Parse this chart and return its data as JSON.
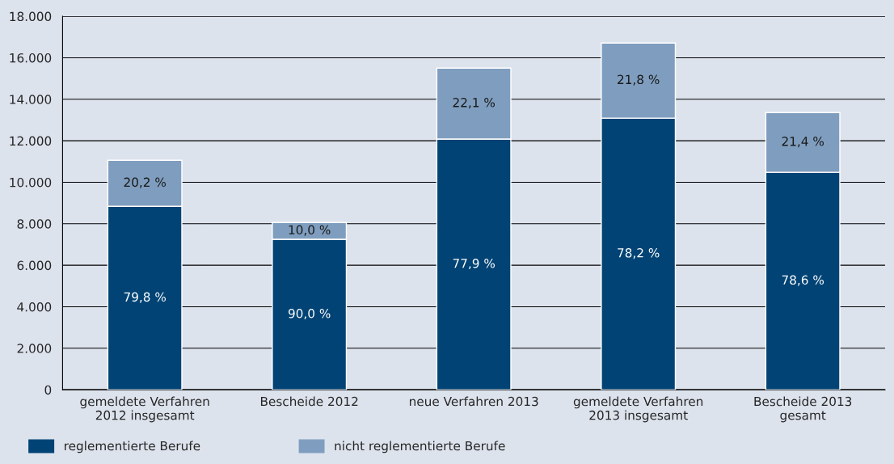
{
  "chart_data": {
    "type": "bar",
    "stacked": true,
    "categories": [
      "gemeldete Verfahren\n2012 insgesamt",
      "Bescheide 2012",
      "neue Verfahren 2013",
      "gemeldete Verfahren\n2013 insgesamt",
      "Bescheide 2013\ngesamt"
    ],
    "series": [
      {
        "name": "reglementierte Berufe",
        "color": "#004374",
        "values": [
          8840,
          7250,
          12080,
          13090,
          10480
        ]
      },
      {
        "name": "nicht reglementierte Berufe",
        "color": "#7f9ebf",
        "values": [
          2220,
          810,
          3420,
          3620,
          2880
        ]
      }
    ],
    "annotations": [
      "79,8 %",
      "90,0 %",
      "77,9 %",
      "78,2 %",
      "78,6 %",
      "20,2 %",
      "10,0 %",
      "22,1 %",
      "21,8 %",
      "21,4 %"
    ],
    "ylim": [
      0,
      18000
    ],
    "yticks": [
      0,
      {
        "value": 2000,
        "label": "2.000"
      },
      {
        "value": 4000,
        "label": "4.000"
      },
      {
        "value": 6000,
        "label": "6.000"
      },
      {
        "value": 8000,
        "label": "8.000"
      },
      {
        "value": 10000,
        "label": "10.000"
      },
      {
        "value": 12000,
        "label": "12.000"
      },
      {
        "value": 14000,
        "label": "14.000"
      },
      {
        "value": 16000,
        "label": "16.000"
      },
      {
        "value": 18000,
        "label": "18.000"
      }
    ],
    "grid": "y",
    "legend": "bottom left"
  }
}
